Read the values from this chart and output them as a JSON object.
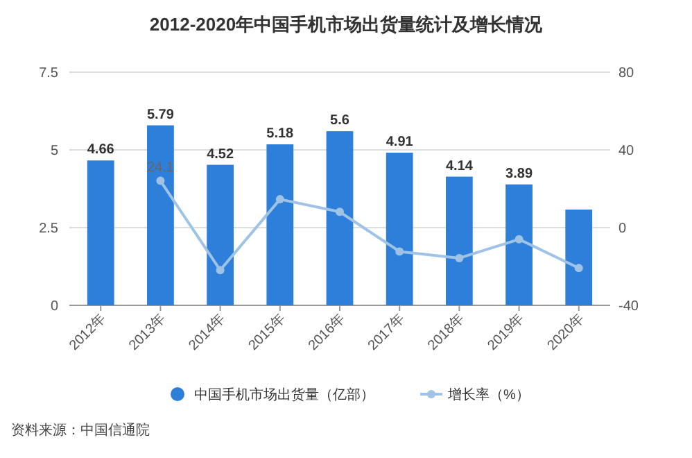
{
  "chart_data": {
    "type": "bar",
    "title": "2012-2020年中国手机市场出货量统计及增长情况",
    "categories": [
      "2012年",
      "2013年",
      "2014年",
      "2015年",
      "2016年",
      "2017年",
      "2018年",
      "2019年",
      "2020年"
    ],
    "series": [
      {
        "name": "中国手机市场出货量（亿部）",
        "color": "#2e7fd9",
        "values": [
          4.66,
          5.79,
          4.52,
          5.18,
          5.6,
          4.91,
          4.14,
          3.89,
          3.08
        ],
        "value_labels": [
          "4.66",
          "5.79",
          "4.52",
          "5.18",
          "5.6",
          "4.91",
          "4.14",
          "3.89",
          null
        ]
      },
      {
        "name": "增长率（%）",
        "type": "line",
        "axis": "y2",
        "color": "#9ec3e6",
        "marker": "circle",
        "values": [
          null,
          24.1,
          -21.9,
          14.6,
          8.1,
          -12.3,
          -15.7,
          -6,
          -20.8
        ],
        "value_labels": [
          null,
          "24.1",
          null,
          null,
          null,
          null,
          null,
          null,
          null
        ]
      }
    ],
    "ylim": [
      0,
      7.5
    ],
    "yticks": [
      0,
      2.5,
      5,
      7.5
    ],
    "y2lim": [
      -40,
      80
    ],
    "y2ticks": [
      -40,
      0,
      40,
      80
    ],
    "grid": "y",
    "legend": "bottom",
    "annotations": [
      "资料来源：中国信通院"
    ]
  }
}
